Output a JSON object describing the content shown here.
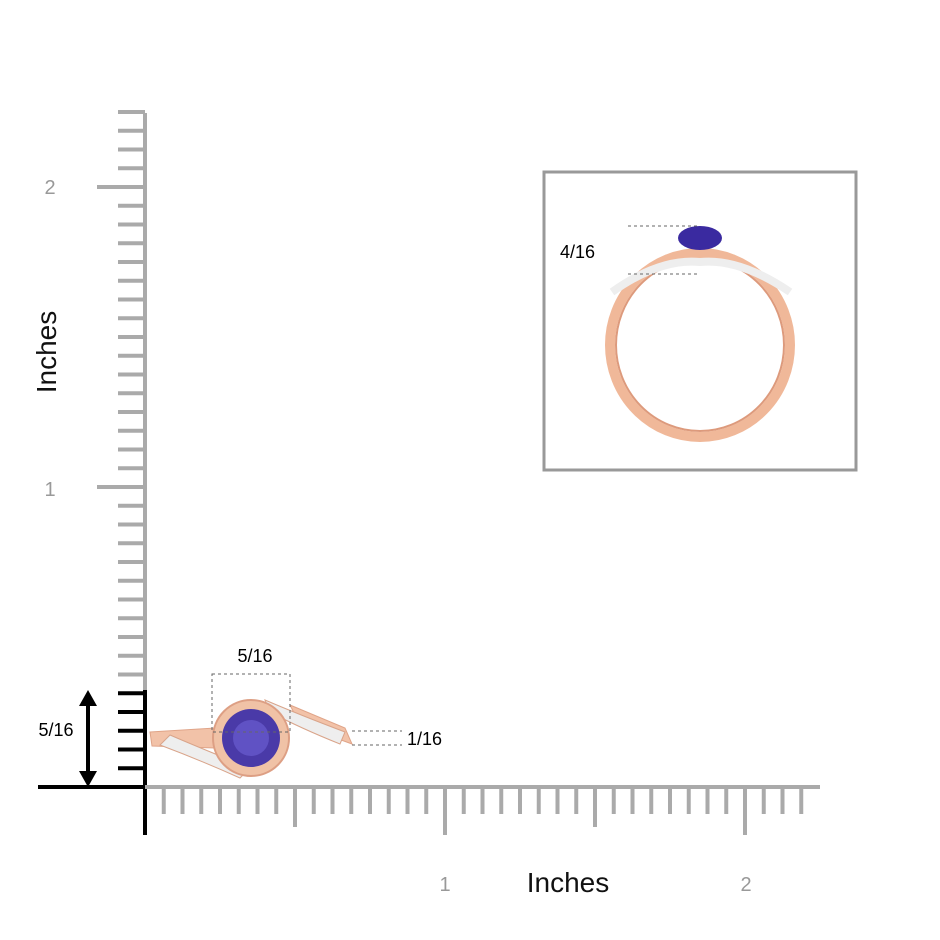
{
  "vertical_ruler": {
    "axis_label": "Inches",
    "tick_labels": [
      "1",
      "2"
    ]
  },
  "horizontal_ruler": {
    "axis_label": "Inches",
    "tick_labels": [
      "1",
      "2"
    ]
  },
  "dimensions": {
    "height": "5/16",
    "width": "5/16",
    "band_width": "1/16",
    "profile_height": "4/16"
  }
}
